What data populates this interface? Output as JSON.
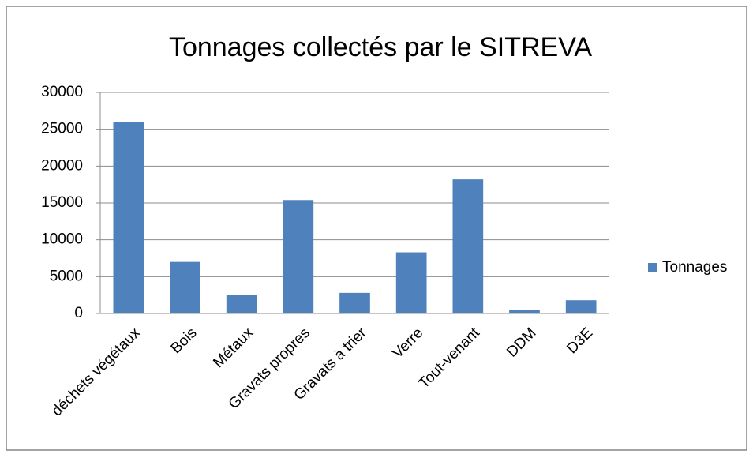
{
  "chart_data": {
    "type": "bar",
    "title": "Tonnages collectés par le SITREVA",
    "categories": [
      "déchets végétaux",
      "Bois",
      "Métaux",
      "Gravats propres",
      "Gravats à trier",
      "Verre",
      "Tout-venant",
      "DDM",
      "D3E"
    ],
    "series": [
      {
        "name": "Tonnages",
        "color": "#4f81bd",
        "values": [
          26000,
          7000,
          2500,
          15400,
          2800,
          8300,
          18200,
          500,
          1800
        ]
      }
    ],
    "ylim": [
      0,
      30000
    ],
    "yticks": [
      0,
      5000,
      10000,
      15000,
      20000,
      25000,
      30000
    ],
    "grid": true,
    "legend": "right"
  }
}
